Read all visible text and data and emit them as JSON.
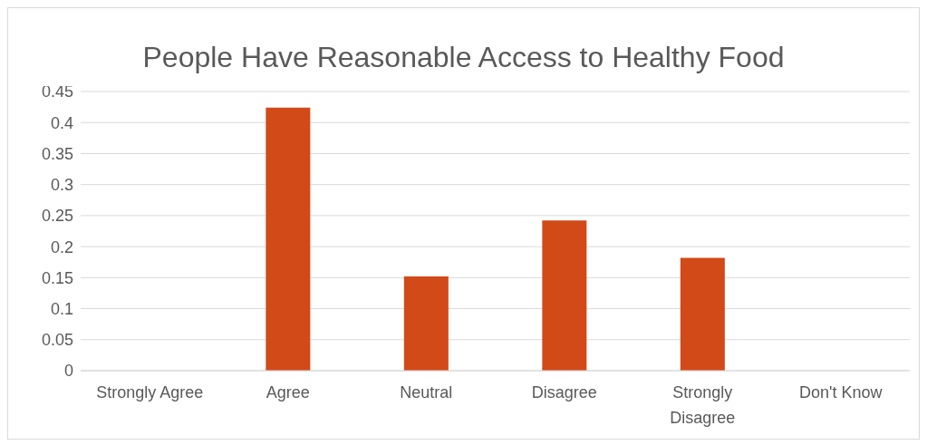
{
  "chart_data": {
    "type": "bar",
    "title": "People Have Reasonable Access to Healthy Food",
    "categories": [
      "Strongly Agree",
      "Agree",
      "Neutral",
      "Disagree",
      "Strongly Disagree",
      "Don't Know"
    ],
    "values": [
      0,
      0.424,
      0.152,
      0.242,
      0.182,
      0
    ],
    "color": "#d24a18",
    "ylim": [
      0,
      0.45
    ],
    "yticks": [
      0,
      0.05,
      0.1,
      0.15,
      0.2,
      0.25,
      0.3,
      0.35,
      0.4,
      0.45
    ],
    "grid": "y"
  }
}
